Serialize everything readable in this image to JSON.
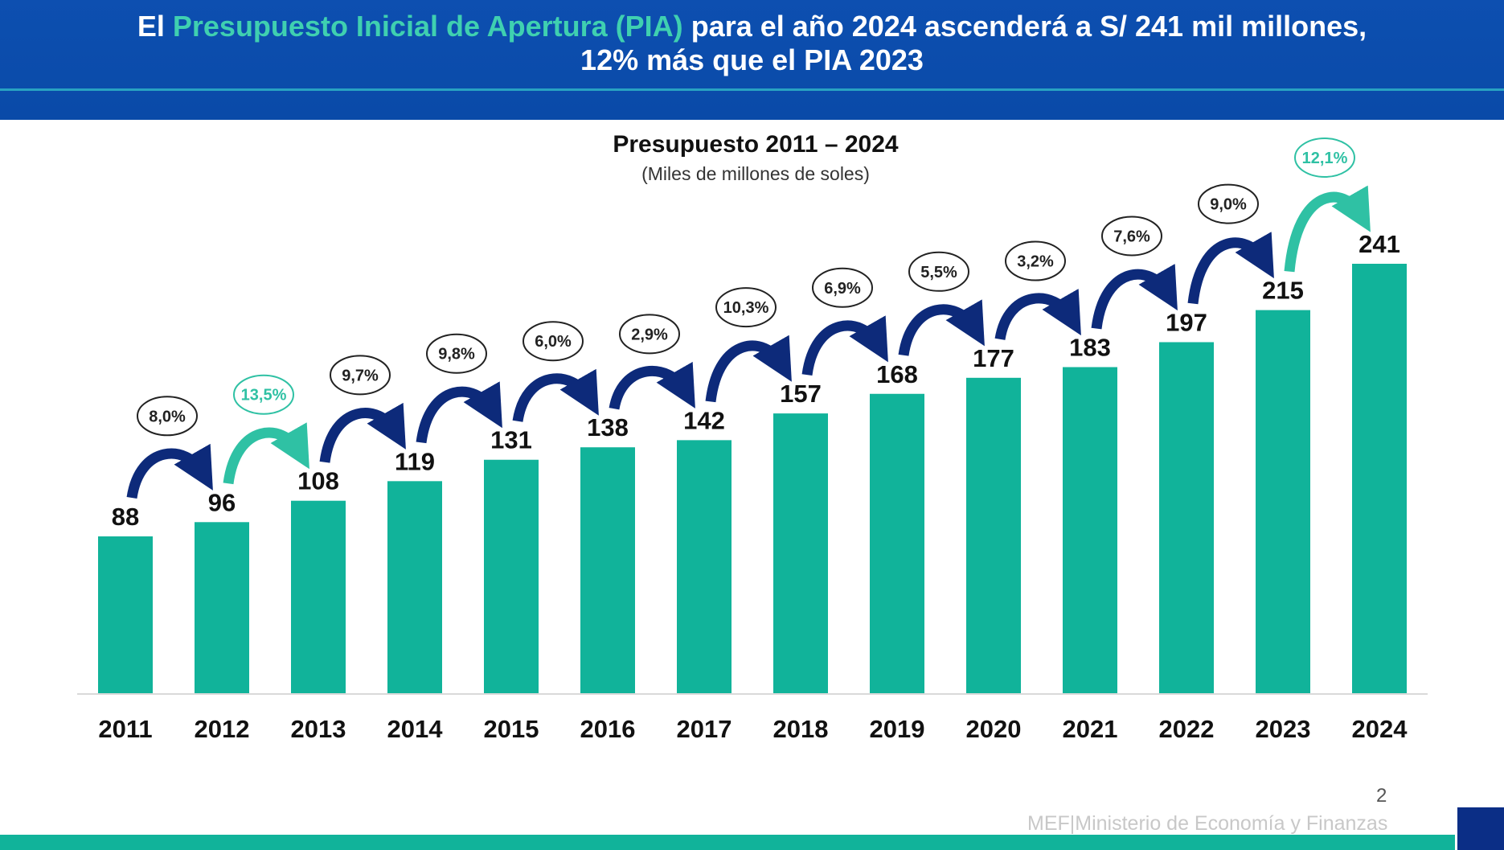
{
  "header": {
    "prefix": "El ",
    "highlight": "Presupuesto Inicial de Apertura (PIA)",
    "suffix": " para el año 2024 ascenderá a S/ 241 mil millones,",
    "line2": "12% más que el PIA 2023"
  },
  "footer": {
    "org": "MEF|Ministerio de Economía y Finanzas",
    "page": "2"
  },
  "colors": {
    "bar": "#11b39a",
    "arrow": "#0d2a7a",
    "highlight_growth": "#2fc1a4",
    "header": "#0d4fb0"
  },
  "chart_data": {
    "type": "bar",
    "title": "Presupuesto 2011 – 2024",
    "subtitle": "(Miles de millones de soles)",
    "categories": [
      "2011",
      "2012",
      "2013",
      "2014",
      "2015",
      "2016",
      "2017",
      "2018",
      "2019",
      "2020",
      "2021",
      "2022",
      "2023",
      "2024"
    ],
    "values": [
      88,
      96,
      108,
      119,
      131,
      138,
      142,
      157,
      168,
      177,
      183,
      197,
      215,
      241
    ],
    "growth_labels": [
      "8,0%",
      "13,5%",
      "9,7%",
      "9,8%",
      "6,0%",
      "2,9%",
      "10,3%",
      "6,9%",
      "5,5%",
      "3,2%",
      "7,6%",
      "9,0%",
      "12,1%"
    ],
    "highlighted_growth": [
      "13,5%",
      "12,1%"
    ],
    "ylim": [
      0,
      241
    ],
    "grid": false
  }
}
